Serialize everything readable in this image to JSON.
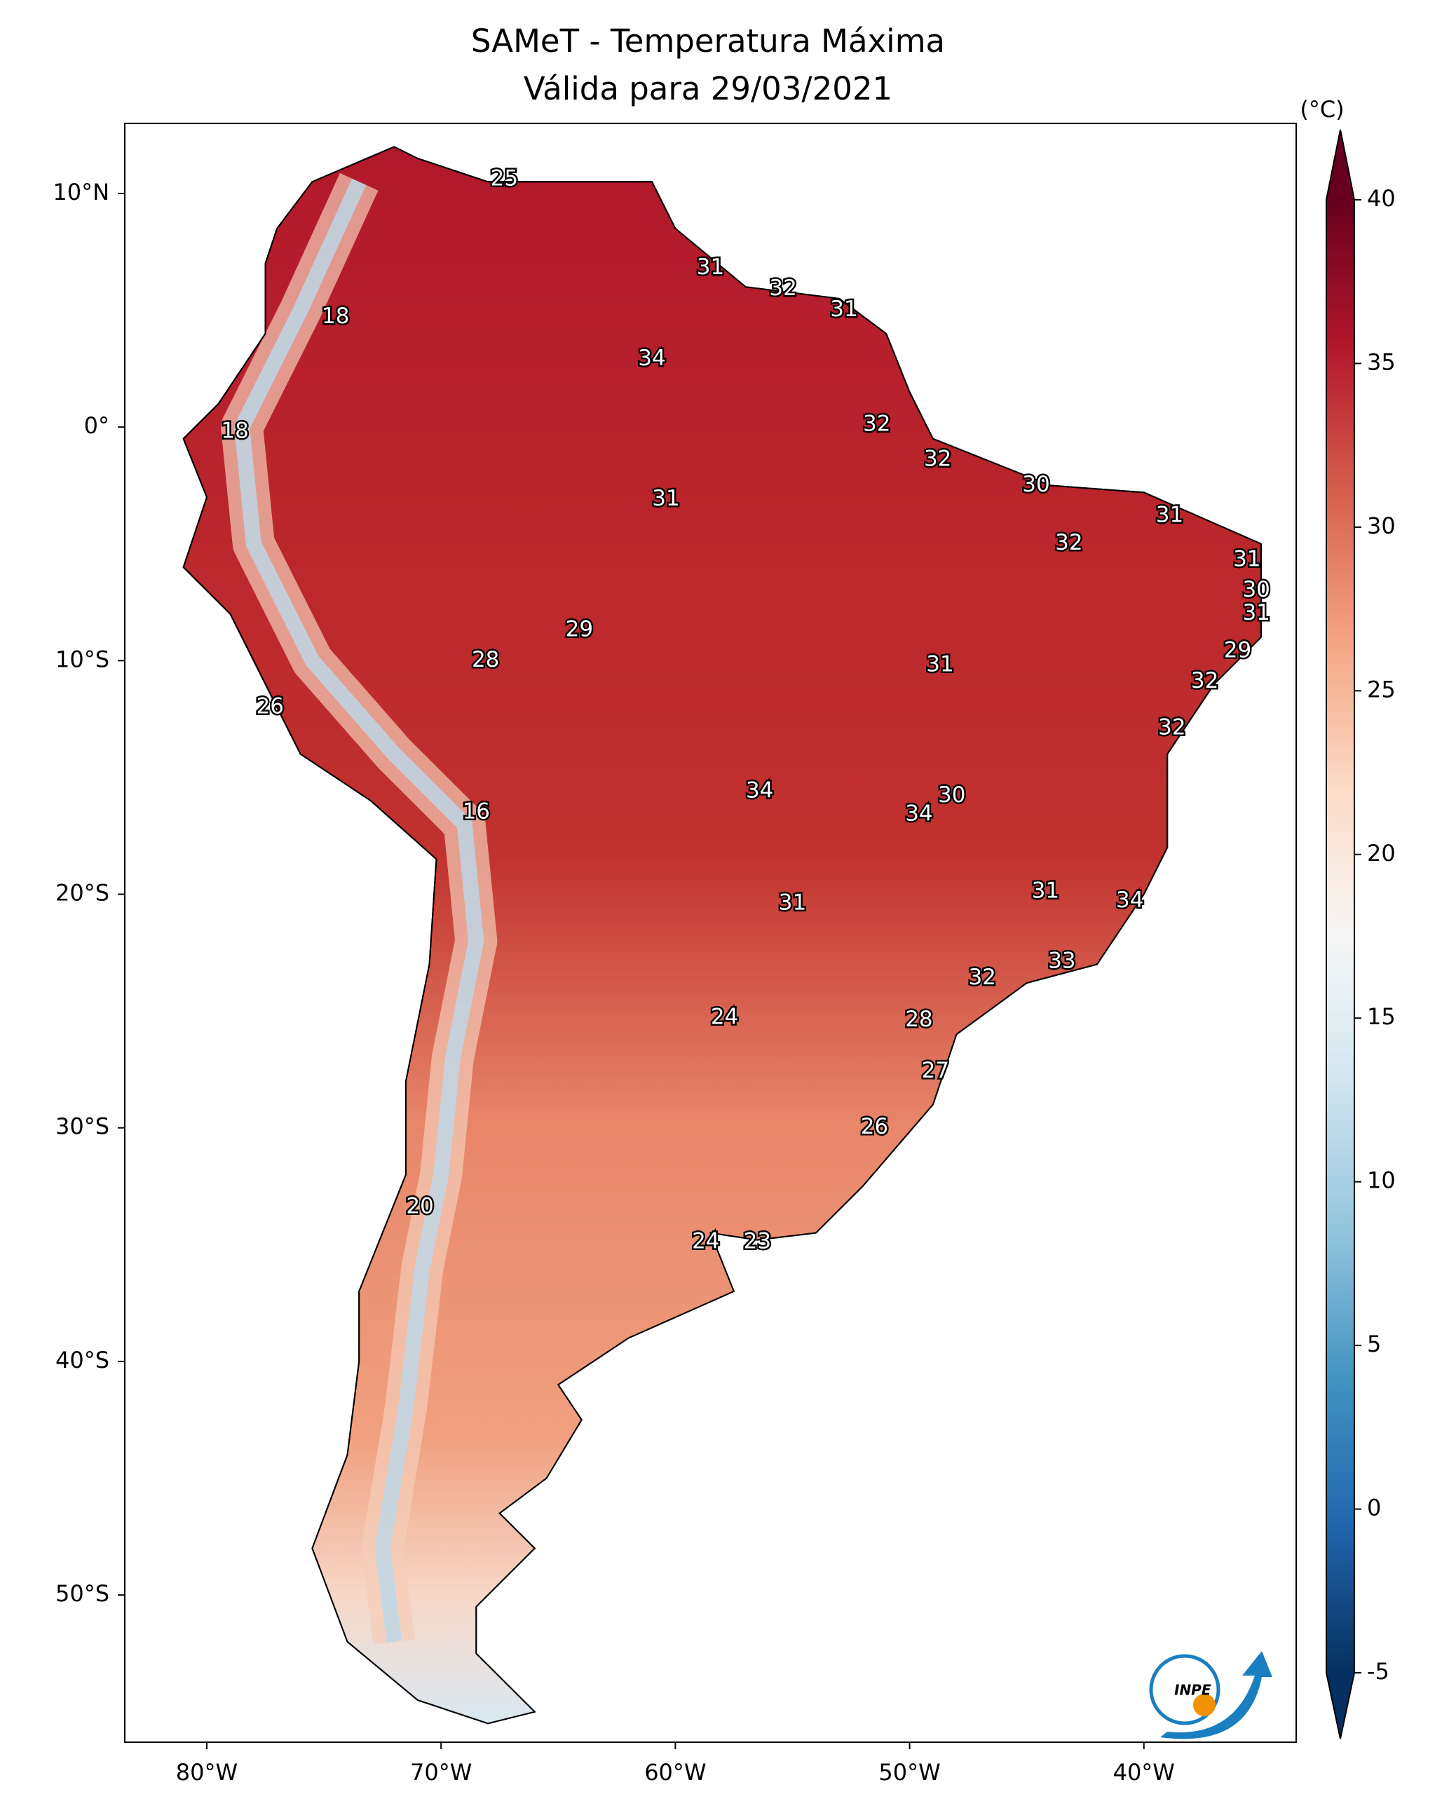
{
  "chart_data": {
    "type": "map",
    "title": [
      "SAMeT - Temperatura Máxima",
      "Válida para 29/03/2021"
    ],
    "xlim": [
      -83.5,
      -33.5
    ],
    "ylim": [
      -56.3,
      13
    ],
    "xticks": [
      {
        "value": -80,
        "label": "80°W"
      },
      {
        "value": -70,
        "label": "70°W"
      },
      {
        "value": -60,
        "label": "60°W"
      },
      {
        "value": -50,
        "label": "50°W"
      },
      {
        "value": -40,
        "label": "40°W"
      }
    ],
    "yticks": [
      {
        "value": 10,
        "label": "10°N"
      },
      {
        "value": 0,
        "label": "0°"
      },
      {
        "value": -10,
        "label": "10°S"
      },
      {
        "value": -20,
        "label": "20°S"
      },
      {
        "value": -30,
        "label": "30°S"
      },
      {
        "value": -40,
        "label": "40°S"
      },
      {
        "value": -50,
        "label": "50°S"
      }
    ],
    "colorbar": {
      "label": "(°C)",
      "clim": [
        -5,
        40
      ],
      "ticks": [
        -5,
        0,
        5,
        10,
        15,
        20,
        25,
        30,
        35,
        40
      ],
      "colors": [
        "#053061",
        "#2166ac",
        "#4393c3",
        "#92c5de",
        "#d1e5f0",
        "#f7f7f7",
        "#fddbc7",
        "#f4a582",
        "#d6604d",
        "#b2182b",
        "#67001f"
      ]
    },
    "labels": [
      {
        "value": 25,
        "lon": -67.3,
        "lat": 10.6
      },
      {
        "value": 31,
        "lon": -58.5,
        "lat": 6.8
      },
      {
        "value": 32,
        "lon": -55.4,
        "lat": 5.9
      },
      {
        "value": 31,
        "lon": -52.8,
        "lat": 5.0
      },
      {
        "value": 18,
        "lon": -74.5,
        "lat": 4.7
      },
      {
        "value": 34,
        "lon": -61.0,
        "lat": 2.9
      },
      {
        "value": 32,
        "lon": -51.4,
        "lat": 0.1
      },
      {
        "value": 18,
        "lon": -78.8,
        "lat": -0.2
      },
      {
        "value": 32,
        "lon": -48.8,
        "lat": -1.4
      },
      {
        "value": 30,
        "lon": -44.6,
        "lat": -2.5
      },
      {
        "value": 31,
        "lon": -60.4,
        "lat": -3.1
      },
      {
        "value": 31,
        "lon": -38.9,
        "lat": -3.8
      },
      {
        "value": 32,
        "lon": -43.2,
        "lat": -5.0
      },
      {
        "value": 31,
        "lon": -35.6,
        "lat": -5.7
      },
      {
        "value": 30,
        "lon": -35.2,
        "lat": -7.0
      },
      {
        "value": 31,
        "lon": -35.2,
        "lat": -8.0
      },
      {
        "value": 29,
        "lon": -64.1,
        "lat": -8.7
      },
      {
        "value": 29,
        "lon": -36.0,
        "lat": -9.6
      },
      {
        "value": 28,
        "lon": -68.1,
        "lat": -10.0
      },
      {
        "value": 31,
        "lon": -48.7,
        "lat": -10.2
      },
      {
        "value": 32,
        "lon": -37.4,
        "lat": -10.9
      },
      {
        "value": 26,
        "lon": -77.3,
        "lat": -12.0
      },
      {
        "value": 32,
        "lon": -38.8,
        "lat": -12.9
      },
      {
        "value": 34,
        "lon": -56.4,
        "lat": -15.6
      },
      {
        "value": 30,
        "lon": -48.2,
        "lat": -15.8
      },
      {
        "value": 16,
        "lon": -68.5,
        "lat": -16.5
      },
      {
        "value": 34,
        "lon": -49.6,
        "lat": -16.6
      },
      {
        "value": 31,
        "lon": -44.2,
        "lat": -19.9
      },
      {
        "value": 34,
        "lon": -40.6,
        "lat": -20.3
      },
      {
        "value": 31,
        "lon": -55.0,
        "lat": -20.4
      },
      {
        "value": 33,
        "lon": -43.5,
        "lat": -22.9
      },
      {
        "value": 32,
        "lon": -46.9,
        "lat": -23.6
      },
      {
        "value": 24,
        "lon": -57.9,
        "lat": -25.3
      },
      {
        "value": 28,
        "lon": -49.6,
        "lat": -25.4
      },
      {
        "value": 27,
        "lon": -48.9,
        "lat": -27.6
      },
      {
        "value": 26,
        "lon": -51.5,
        "lat": -30.0
      },
      {
        "value": 20,
        "lon": -70.9,
        "lat": -33.4
      },
      {
        "value": 24,
        "lon": -58.7,
        "lat": -34.9
      },
      {
        "value": 23,
        "lon": -56.5,
        "lat": -34.9
      }
    ],
    "logo_text": "INPE"
  }
}
